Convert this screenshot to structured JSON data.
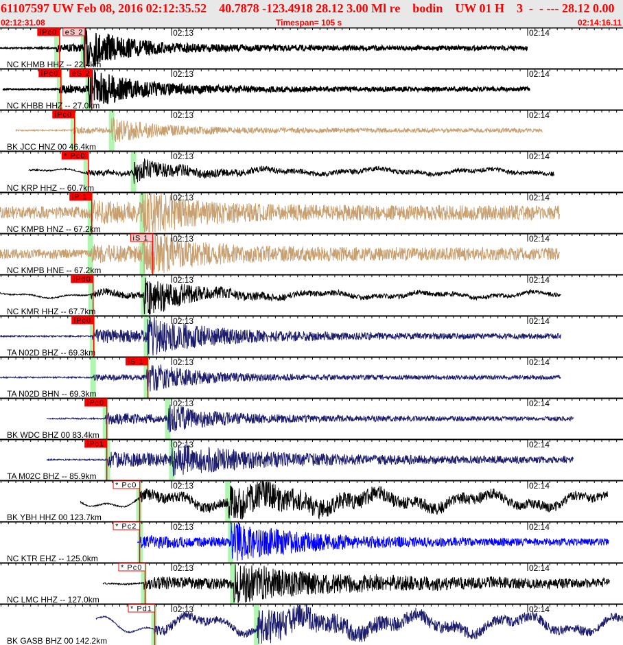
{
  "header": {
    "event_line": "61107597 UW Feb 08, 2016 02:12:35.52    40.7878 -123.4918 28.12 3.00 Ml re    bodin    UW 01 H    3  -  - --- 28.12 0.00",
    "start_time": "02:12:31.08",
    "timespan": "Timespan= 105 s",
    "end_time": "02:14:16.11"
  },
  "colors": {
    "header_text": "#ff0000",
    "pick": "#ff0000",
    "predicted": "#b0f5b0",
    "black": "#000000",
    "tan": "#c8a070",
    "navy": "#1c1c6c",
    "blue": "#0000ff"
  },
  "chart_data": {
    "type": "line",
    "xaxis": {
      "start": "02:12:31.08",
      "end": "02:14:16.11",
      "span_s": 105,
      "tick_labels": [
        "02:13",
        "02:14"
      ]
    },
    "traces": [
      {
        "label": "NC KHMB HHZ -- 22.4km",
        "color": "black",
        "picks": [
          {
            "name": "iPc0",
            "time": "02:12:41.12",
            "style": "solid"
          },
          {
            "name": "eS 2",
            "time": "02:12:45.39",
            "style": "pale"
          }
        ],
        "predicted": [
          "02:12:40.66",
          "02:12:45.16"
        ]
      },
      {
        "label": "NC KHBB HHZ -- 27.0km",
        "color": "black",
        "picks": [
          {
            "name": "iPc0",
            "time": "02:12:41.35",
            "style": "solid"
          },
          {
            "name": "eS 2",
            "time": "02:12:46.54",
            "style": "solid"
          }
        ],
        "predicted": [
          "02:12:41.12",
          "02:12:45.96"
        ]
      },
      {
        "label": "BK JCC HNZ 00 46.4km",
        "color": "tan",
        "picks": [
          {
            "name": "iPc0",
            "time": "02:12:43.66",
            "style": "solid"
          }
        ],
        "predicted": [
          "02:12:43.43",
          "02:12:49.89"
        ]
      },
      {
        "label": "NC KRP HHZ -- 60.7km",
        "color": "black",
        "picks": [
          {
            "name": "* Pc0",
            "time": "02:12:45.96",
            "style": "solid"
          }
        ],
        "predicted": [
          "02:12:45.62",
          "02:12:53.58"
        ]
      },
      {
        "label": "NC KMPB HNZ -- 67.2km",
        "color": "tan",
        "picks": [
          {
            "name": "iP 1",
            "time": "02:12:46.54",
            "style": "solid"
          }
        ],
        "predicted": [
          "02:12:46.31",
          "02:12:55.08"
        ]
      },
      {
        "label": "NC KMPB HNE -- 67.2km",
        "color": "tan",
        "picks": [
          {
            "name": "iS 1",
            "time": "02:12:56.81",
            "style": "pale"
          }
        ],
        "predicted": [
          "02:12:46.31",
          "02:12:55.08"
        ]
      },
      {
        "label": "NC KMR HHZ -- 67.7km",
        "color": "black",
        "picks": [
          {
            "name": "iPd0",
            "time": "02:12:46.77",
            "style": "solid"
          }
        ],
        "predicted": [
          "02:12:46.43",
          "02:12:55.31"
        ]
      },
      {
        "label": "TA N02D BHZ -- 69.3km",
        "color": "navy",
        "picks": [
          {
            "name": "iPc0",
            "time": "02:12:46.89",
            "style": "solid"
          }
        ],
        "predicted": [
          "02:12:46.66",
          "02:12:55.77"
        ]
      },
      {
        "label": "TA N02D BHN -- 69.3km",
        "color": "navy",
        "picks": [
          {
            "name": "iS 1",
            "time": "02:12:56.00",
            "style": "solid"
          }
        ],
        "predicted": [
          "02:12:46.77",
          "02:12:55.77"
        ]
      },
      {
        "label": "BK WDC BHZ 00 83.4km",
        "color": "navy",
        "picks": [
          {
            "name": "iPc0",
            "time": "02:12:49.08",
            "style": "solid"
          }
        ],
        "predicted": [
          "02:12:48.85",
          "02:12:59.35"
        ]
      },
      {
        "label": "TA M02C BHZ -- 85.9km",
        "color": "navy",
        "picks": [
          {
            "name": "iPc1",
            "time": "02:12:49.08",
            "style": "solid"
          }
        ],
        "predicted": [
          "02:12:49.19",
          "02:13:00.04"
        ]
      },
      {
        "label": "BK YBH HHZ 00 123.7km",
        "color": "black",
        "picks": [
          {
            "name": "* Pc0",
            "time": "02:12:54.62",
            "style": "outline"
          }
        ],
        "predicted": [
          "02:12:54.50",
          "02:13:09.50"
        ]
      },
      {
        "label": "NC KTR EHZ -- 125.0km",
        "color": "blue",
        "picks": [
          {
            "name": "* Pc2",
            "time": "02:12:54.62",
            "style": "outline"
          }
        ],
        "predicted": [
          "02:12:54.73",
          "02:13:09.96"
        ]
      },
      {
        "label": "NC LMC HHZ -- 127.0km",
        "color": "black",
        "picks": [
          {
            "name": "* Pc0",
            "time": "02:12:55.54",
            "style": "outline"
          }
        ],
        "predicted": [
          "02:12:55.31",
          "02:13:10.31"
        ]
      },
      {
        "label": "BK GASB BHZ 00 142.2km",
        "color": "navy",
        "picks": [
          {
            "name": "* Pd1",
            "time": "02:12:57.16",
            "style": "outline"
          }
        ],
        "predicted": [
          "02:12:57.04",
          "02:13:14.35"
        ]
      }
    ]
  }
}
